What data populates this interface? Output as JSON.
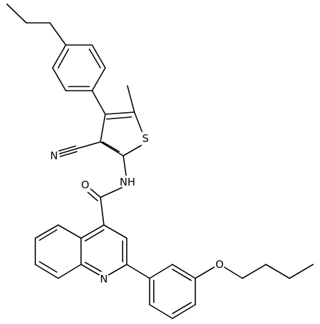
{
  "atoms": [
    {
      "label": "S"
    },
    {
      "label": "N"
    },
    {
      "label": "NH"
    },
    {
      "label": "O"
    },
    {
      "label": "N"
    },
    {
      "label": "O"
    }
  ]
}
